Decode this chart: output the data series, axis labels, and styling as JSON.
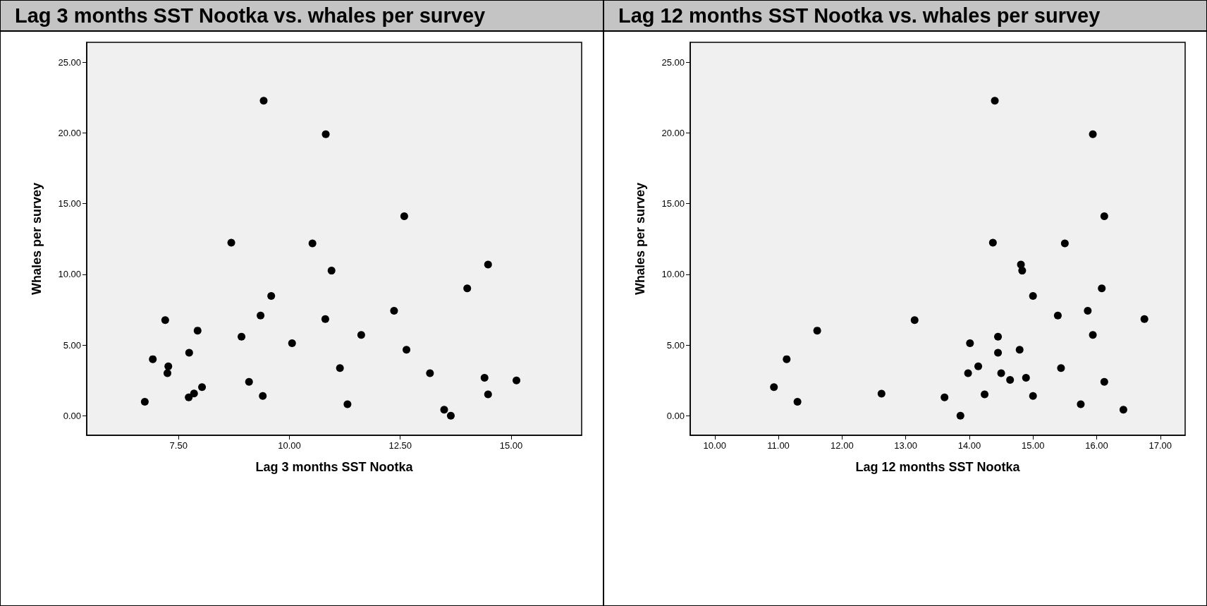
{
  "chart_data": [
    {
      "type": "scatter",
      "title": "Lag 3 months SST Nootka vs. whales per survey",
      "xlabel": "Lag 3 months SST Nootka",
      "ylabel": "Whales per survey",
      "marker": "circle",
      "series": [
        {
          "color": "#000000",
          "x": [
            6.74,
            6.92,
            7.2,
            7.27,
            7.25,
            7.74,
            7.73,
            7.85,
            7.93,
            8.03,
            8.92,
            9.09,
            9.35,
            9.4,
            9.59,
            10.06,
            10.81,
            10.95,
            11.14,
            11.31,
            11.62,
            12.36,
            12.64,
            13.17,
            13.49,
            13.64,
            14.01,
            14.4,
            14.48,
            14.48,
            15.12,
            9.42,
            10.82,
            12.59,
            8.69,
            10.52
          ],
          "values": [
            0.99,
            4.0,
            6.76,
            3.49,
            3.01,
            4.46,
            1.3,
            1.58,
            6.02,
            2.02,
            5.59,
            2.4,
            7.09,
            1.4,
            8.47,
            5.13,
            6.84,
            10.26,
            3.37,
            0.82,
            5.71,
            7.42,
            4.67,
            3.01,
            0.43,
            0.0,
            9.01,
            2.68,
            10.69,
            1.51,
            2.5,
            22.27,
            19.9,
            14.11,
            12.24,
            12.19
          ]
        }
      ],
      "xlim": [
        5.43,
        16.59
      ],
      "xticks": [
        {
          "value": 7.5,
          "label": "7.50"
        },
        {
          "value": 10,
          "label": "10.00"
        },
        {
          "value": 12.5,
          "label": "12.50"
        },
        {
          "value": 15,
          "label": "15.00"
        }
      ],
      "ylim": [
        -1.38,
        26.4
      ],
      "yticks": [
        {
          "value": 0,
          "label": "0.00"
        },
        {
          "value": 5,
          "label": "5.00"
        },
        {
          "value": 10,
          "label": "10.00"
        },
        {
          "value": 15,
          "label": "15.00"
        },
        {
          "value": 20,
          "label": "20.00"
        },
        {
          "value": 25,
          "label": "25.00"
        }
      ]
    },
    {
      "type": "scatter",
      "title": "Lag 12 months SST Nootka vs. whales per survey",
      "xlabel": "Lag 12 months SST Nootka",
      "ylabel": "Whales per survey",
      "marker": "circle",
      "series": [
        {
          "color": "#000000",
          "x": [
            10.93,
            11.13,
            11.3,
            11.61,
            12.62,
            13.14,
            13.61,
            13.86,
            13.98,
            14.01,
            14.14,
            14.24,
            14.45,
            14.45,
            14.5,
            14.64,
            14.79,
            14.81,
            14.83,
            14.89,
            15.0,
            15.0,
            15.39,
            15.44,
            15.75,
            15.86,
            15.94,
            16.08,
            16.12,
            16.42,
            16.75,
            14.4,
            15.94,
            16.12,
            14.37,
            15.5
          ],
          "values": [
            2.02,
            4.0,
            0.99,
            6.02,
            1.56,
            6.76,
            1.3,
            0.0,
            3.01,
            5.13,
            3.49,
            1.51,
            5.59,
            4.46,
            3.01,
            2.53,
            4.67,
            10.69,
            10.26,
            2.68,
            8.47,
            1.4,
            7.09,
            3.37,
            0.82,
            7.42,
            5.71,
            9.01,
            2.4,
            0.43,
            6.84,
            22.27,
            19.9,
            14.11,
            12.24,
            12.19
          ]
        }
      ],
      "xlim": [
        9.615,
        17.39
      ],
      "xticks": [
        {
          "value": 10,
          "label": "10.00"
        },
        {
          "value": 11,
          "label": "11.00"
        },
        {
          "value": 12,
          "label": "12.00"
        },
        {
          "value": 13,
          "label": "13.00"
        },
        {
          "value": 14,
          "label": "14.00"
        },
        {
          "value": 15,
          "label": "15.00"
        },
        {
          "value": 16,
          "label": "16.00"
        },
        {
          "value": 17,
          "label": "17.00"
        }
      ],
      "ylim": [
        -1.38,
        26.4
      ],
      "yticks": [
        {
          "value": 0,
          "label": "0.00"
        },
        {
          "value": 5,
          "label": "5.00"
        },
        {
          "value": 10,
          "label": "10.00"
        },
        {
          "value": 15,
          "label": "15.00"
        },
        {
          "value": 20,
          "label": "20.00"
        },
        {
          "value": 25,
          "label": "25.00"
        }
      ]
    }
  ]
}
